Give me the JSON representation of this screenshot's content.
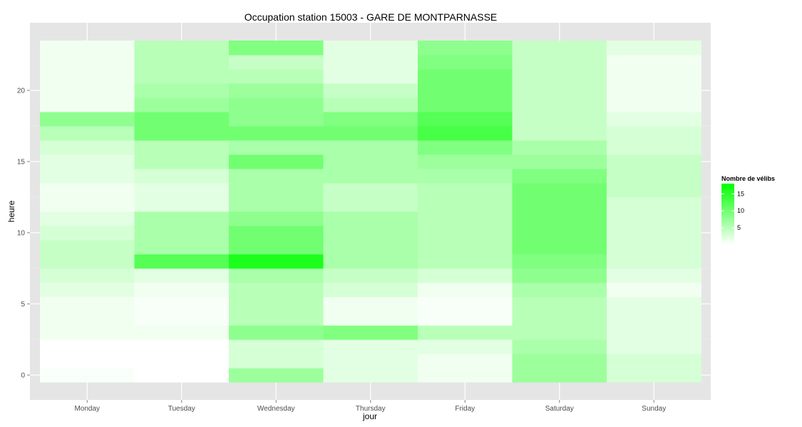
{
  "chart_data": {
    "type": "heatmap",
    "title": "Occupation station 15003 - GARE DE MONTPARNASSE",
    "xlabel": "jour",
    "ylabel": "heure",
    "categories": [
      "Monday",
      "Tuesday",
      "Wednesday",
      "Thursday",
      "Friday",
      "Saturday",
      "Sunday"
    ],
    "hours": [
      0,
      1,
      2,
      3,
      4,
      5,
      6,
      7,
      8,
      9,
      10,
      11,
      12,
      13,
      14,
      15,
      16,
      17,
      18,
      19,
      20,
      21,
      22,
      23
    ],
    "y_ticks": [
      0,
      5,
      10,
      15,
      20
    ],
    "ylim": [
      -0.5,
      23.5
    ],
    "grid": true,
    "legend": {
      "title": "Nombre de vélibs",
      "position": "right",
      "ticks": [
        5,
        10,
        15
      ],
      "min": 0,
      "max": 18,
      "low_color": "#ffffff",
      "high_color": "#00ff00"
    },
    "values": [
      [
        0.5,
        0,
        7,
        2,
        1,
        7,
        3
      ],
      [
        0,
        0,
        3,
        2,
        1,
        7,
        3
      ],
      [
        0,
        0,
        3,
        2,
        2,
        6,
        2
      ],
      [
        1,
        1,
        8,
        9,
        5,
        5,
        2
      ],
      [
        1,
        0.5,
        5,
        1,
        0.5,
        5,
        2
      ],
      [
        1,
        0.5,
        5,
        1,
        0.5,
        5,
        2
      ],
      [
        2,
        1,
        5,
        3,
        1,
        6,
        1
      ],
      [
        3,
        2,
        6,
        4,
        3,
        8,
        2
      ],
      [
        4,
        12,
        16,
        6,
        5,
        9,
        3
      ],
      [
        4,
        6,
        10,
        6,
        5,
        10,
        3
      ],
      [
        3,
        6,
        10,
        6,
        5,
        10,
        3
      ],
      [
        2,
        6,
        8,
        6,
        5,
        10,
        3
      ],
      [
        1,
        2,
        6,
        4,
        5,
        10,
        3
      ],
      [
        1,
        2,
        6,
        4,
        5,
        10,
        4
      ],
      [
        2,
        3,
        6,
        6,
        6,
        9,
        4
      ],
      [
        2,
        5,
        10,
        6,
        7,
        7,
        4
      ],
      [
        3,
        5,
        6,
        6,
        9,
        6,
        3
      ],
      [
        5,
        10,
        10,
        10,
        13,
        4,
        3
      ],
      [
        8,
        10,
        8,
        9,
        12,
        4,
        2
      ],
      [
        1,
        7,
        8,
        5,
        10,
        4,
        1
      ],
      [
        1,
        6,
        7,
        4,
        10,
        4,
        1
      ],
      [
        1,
        5,
        5,
        2,
        10,
        4,
        1
      ],
      [
        1,
        5,
        4,
        2,
        9,
        4,
        1
      ],
      [
        1,
        5,
        9,
        2,
        8,
        4,
        2
      ]
    ]
  }
}
